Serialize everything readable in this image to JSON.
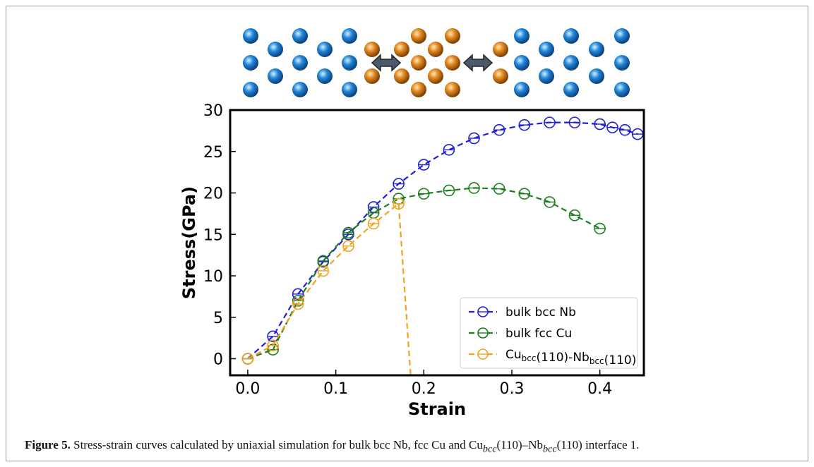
{
  "caption": {
    "label": "Figure 5.",
    "pre": " Stress-strain curves calculated by uniaxial simulation for bulk bcc Nb, fcc Cu and Cu",
    "sub1": "bcc",
    "mid": "(110)–Nb",
    "sub2": "bcc",
    "post": "(110) interface 1."
  },
  "chart_data": {
    "type": "line",
    "xlabel": "Strain",
    "ylabel": "Stress(GPa)",
    "xlim": [
      -0.02,
      0.45
    ],
    "ylim": [
      -2,
      30
    ],
    "xticks": [
      "0.0",
      "0.1",
      "0.2",
      "0.3",
      "0.4"
    ],
    "xtick_values": [
      0.0,
      0.1,
      0.2,
      0.3,
      0.4
    ],
    "yticks": [
      "0",
      "5",
      "10",
      "15",
      "20",
      "25",
      "30"
    ],
    "ytick_values": [
      0,
      5,
      10,
      15,
      20,
      25,
      30
    ],
    "grid": false,
    "legend_position": "lower-right",
    "series": [
      {
        "name": "bulk bcc Nb",
        "color": "#1f1fd6",
        "x": [
          0.0,
          0.0286,
          0.0571,
          0.0857,
          0.1143,
          0.1429,
          0.1714,
          0.2,
          0.2286,
          0.2571,
          0.2857,
          0.3143,
          0.3429,
          0.3714,
          0.4,
          0.4143,
          0.4286,
          0.4429
        ],
        "y": [
          0.0,
          2.7,
          7.8,
          11.7,
          15.0,
          18.3,
          21.1,
          23.4,
          25.2,
          26.6,
          27.6,
          28.2,
          28.5,
          28.5,
          28.3,
          27.9,
          27.6,
          27.1
        ]
      },
      {
        "name": "bulk fcc Cu",
        "color": "#1e7d1e",
        "x": [
          0.0,
          0.0286,
          0.0571,
          0.0857,
          0.1143,
          0.1429,
          0.1714,
          0.2,
          0.2286,
          0.2571,
          0.2857,
          0.3143,
          0.3429,
          0.3714,
          0.4
        ],
        "y": [
          0.0,
          1.1,
          7.0,
          11.8,
          15.2,
          17.6,
          19.3,
          19.9,
          20.3,
          20.6,
          20.5,
          19.9,
          18.9,
          17.3,
          15.7
        ]
      },
      {
        "name": "Cu_bcc(110)-Nb_bcc(110)",
        "label_parts": {
          "a": "Cu",
          "sa": "bcc",
          "b": "(110)-Nb",
          "sb": "bcc",
          "c": "(110)"
        },
        "color": "#f2a21b",
        "x": [
          0.0,
          0.0286,
          0.0571,
          0.0857,
          0.1143,
          0.1429,
          0.1714,
          0.185
        ],
        "y": [
          0.0,
          1.6,
          6.6,
          10.6,
          13.6,
          16.3,
          18.7,
          -2.0
        ],
        "markers_count": 7
      }
    ]
  },
  "atoms": {
    "blue": "#1f86d8",
    "orange": "#e0861c",
    "arrow": "#4b5a6b"
  }
}
